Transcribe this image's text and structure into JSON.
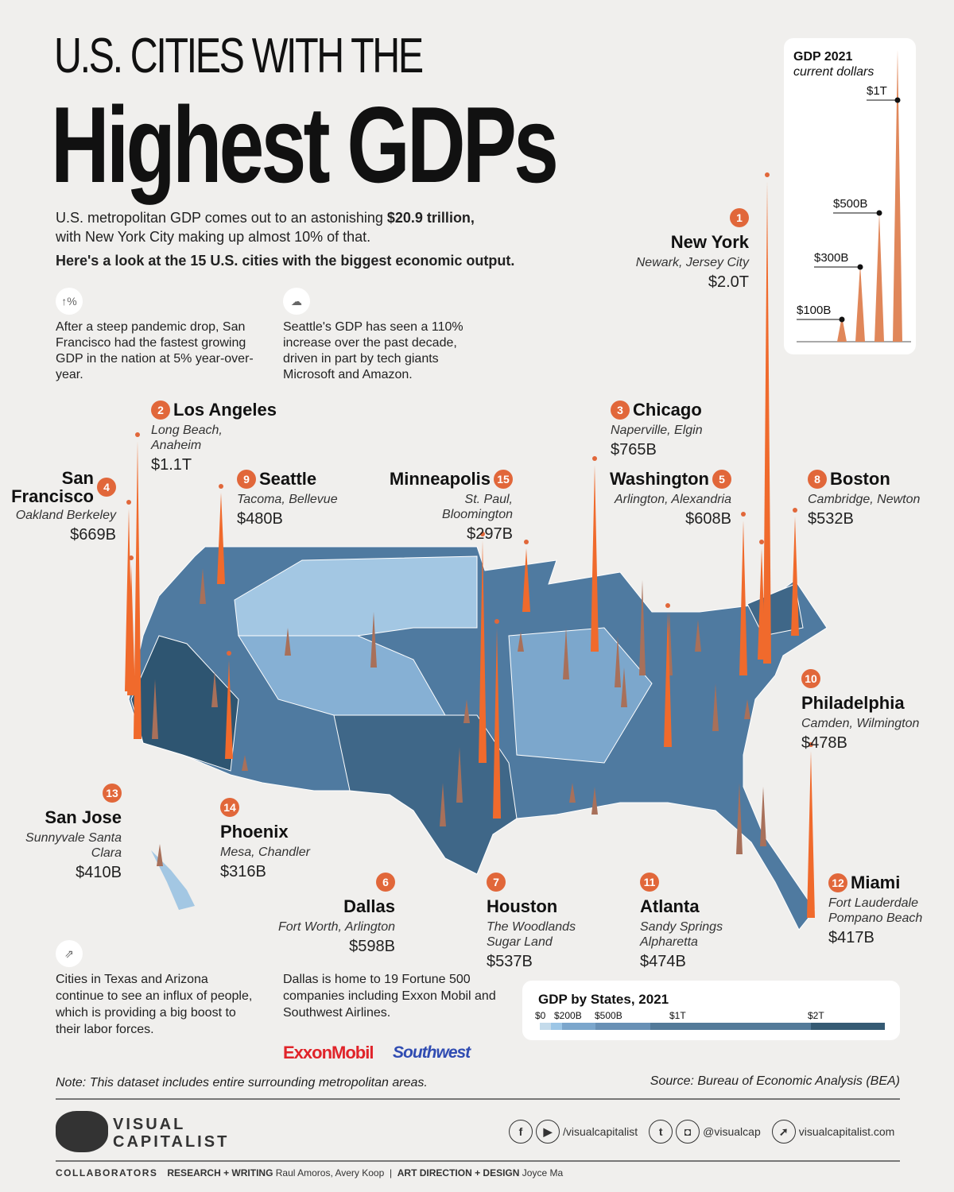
{
  "title": {
    "line1": "U.S. CITIES WITH THE",
    "line2": "Highest GDPs"
  },
  "intro": {
    "p1a": "U.S. metropolitan GDP comes out to an astonishing ",
    "p1b": "$20.9 trillion,",
    "p1c": "with New York City making up almost 10% of that.",
    "p2": "Here's a look at the 15 U.S. cities with the biggest economic output."
  },
  "notes": [
    {
      "icon": "growth-percent-icon",
      "text": "After a steep pandemic drop, San Francisco had the fastest growing GDP in the nation at 5% year-over-year."
    },
    {
      "icon": "laptop-cloud-icon",
      "text": "Seattle's GDP has seen a 110% increase over the past decade, driven in part by tech giants Microsoft and Amazon."
    },
    {
      "icon": "people-growth-icon",
      "text": "Cities in Texas and Arizona continue to see an influx of people, which is providing a big boost to their labor forces."
    },
    {
      "icon": "",
      "text": "Dallas is home to 19 Fortune 500 companies including Exxon Mobil and Southwest Airlines."
    }
  ],
  "logos": {
    "exxon": "ExxonMobil",
    "southwest": "Southwest"
  },
  "scale": {
    "title": "GDP 2021",
    "subtitle": "current dollars",
    "ticks": [
      "$100B",
      "$300B",
      "$500B",
      "$1T"
    ]
  },
  "cities": [
    {
      "rank": "1",
      "name": "New York",
      "sub": "Newark, Jersey City",
      "value": "$2.0T"
    },
    {
      "rank": "2",
      "name": "Los Angeles",
      "sub": "Long Beach, Anaheim",
      "value": "$1.1T"
    },
    {
      "rank": "3",
      "name": "Chicago",
      "sub": "Naperville, Elgin",
      "value": "$765B"
    },
    {
      "rank": "4",
      "name": "San Francisco",
      "sub": "Oakland Berkeley",
      "value": "$669B"
    },
    {
      "rank": "5",
      "name": "Washington",
      "sub": "Arlington, Alexandria",
      "value": "$608B"
    },
    {
      "rank": "6",
      "name": "Dallas",
      "sub": "Fort Worth, Arlington",
      "value": "$598B"
    },
    {
      "rank": "7",
      "name": "Houston",
      "sub": "The Woodlands Sugar Land",
      "value": "$537B"
    },
    {
      "rank": "8",
      "name": "Boston",
      "sub": "Cambridge, Newton",
      "value": "$532B"
    },
    {
      "rank": "9",
      "name": "Seattle",
      "sub": "Tacoma, Bellevue",
      "value": "$480B"
    },
    {
      "rank": "10",
      "name": "Philadelphia",
      "sub": "Camden, Wilmington",
      "value": "$478B"
    },
    {
      "rank": "11",
      "name": "Atlanta",
      "sub": "Sandy Springs Alpharetta",
      "value": "$474B"
    },
    {
      "rank": "12",
      "name": "Miami",
      "sub": "Fort Lauderdale Pompano Beach",
      "value": "$417B"
    },
    {
      "rank": "13",
      "name": "San Jose",
      "sub": "Sunnyvale Santa Clara",
      "value": "$410B"
    },
    {
      "rank": "14",
      "name": "Phoenix",
      "sub": "Mesa, Chandler",
      "value": "$316B"
    },
    {
      "rank": "15",
      "name": "Minneapolis",
      "sub": "St. Paul,  Bloomington",
      "value": "$297B"
    }
  ],
  "legend": {
    "title": "GDP by States, 2021",
    "ticks": [
      "$0",
      "$200B",
      "$500B",
      "$1T",
      "$2T"
    ],
    "colors": [
      "#c4dbeb",
      "#9cc6e6",
      "#7ba6cc",
      "#6890b5",
      "#537a99",
      "#355a73"
    ]
  },
  "colors": {
    "accent": "#e1673a",
    "map": "#4f7aa0"
  },
  "footer": {
    "note": "Note: This dataset includes entire surrounding metropolitan areas.",
    "source": "Source: Bureau of Economic Analysis (BEA)",
    "brand1": "VISUAL",
    "brand2": "CAPITALIST",
    "social1": "/visualcapitalist",
    "social2": "@visualcap",
    "site": "visualcapitalist.com",
    "collab": "COLLABORATORS",
    "rw_label": "RESEARCH + WRITING",
    "rw": "Raul Amoros, Avery Koop",
    "ad_label": "ART DIRECTION + DESIGN",
    "ad": "Joyce Ma"
  }
}
